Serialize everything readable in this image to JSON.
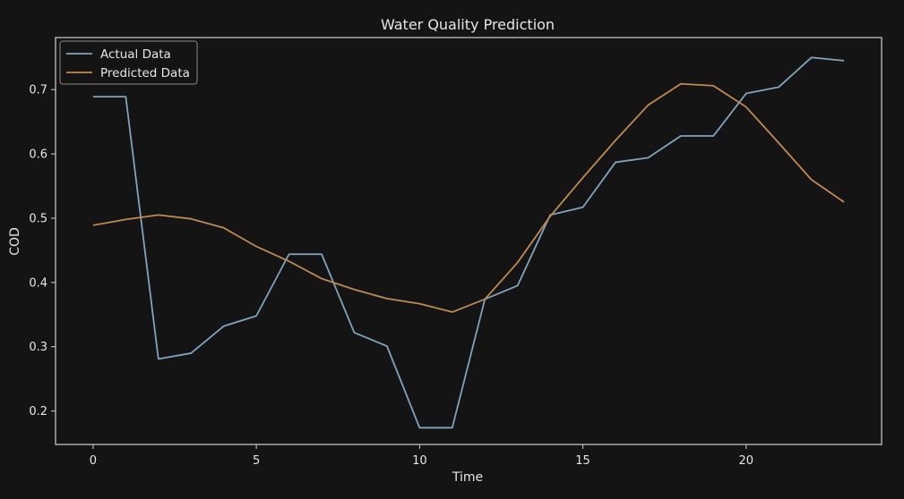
{
  "chart_data": {
    "type": "line",
    "title": "Water Quality Prediction",
    "xlabel": "Time",
    "ylabel": "COD",
    "xlim": [
      -1.15,
      24.15
    ],
    "ylim": [
      0.148,
      0.781
    ],
    "xticks": [
      0,
      5,
      10,
      15,
      20
    ],
    "yticks": [
      0.2,
      0.3,
      0.4,
      0.5,
      0.6,
      0.7
    ],
    "grid": false,
    "legend_position": "top-left",
    "background_color": "#141414",
    "axes_color": "#d0d0d0",
    "text_color": "#e6e6e6",
    "x": [
      0,
      1,
      2,
      3,
      4,
      5,
      6,
      7,
      8,
      9,
      10,
      11,
      12,
      13,
      14,
      15,
      16,
      17,
      18,
      19,
      20,
      21,
      22,
      23
    ],
    "series": [
      {
        "name": "Actual Data",
        "color": "#7fa4bd",
        "values": [
          0.689,
          0.689,
          0.281,
          0.29,
          0.332,
          0.348,
          0.444,
          0.444,
          0.322,
          0.301,
          0.174,
          0.174,
          0.374,
          0.395,
          0.505,
          0.517,
          0.587,
          0.594,
          0.628,
          0.628,
          0.694,
          0.704,
          0.75,
          0.745
        ]
      },
      {
        "name": "Predicted Data",
        "color": "#c08a4f",
        "values": [
          0.489,
          0.498,
          0.505,
          0.499,
          0.485,
          0.456,
          0.433,
          0.406,
          0.389,
          0.375,
          0.367,
          0.354,
          0.374,
          0.431,
          0.503,
          0.563,
          0.621,
          0.676,
          0.709,
          0.706,
          0.673,
          0.617,
          0.56,
          0.525
        ]
      }
    ]
  }
}
